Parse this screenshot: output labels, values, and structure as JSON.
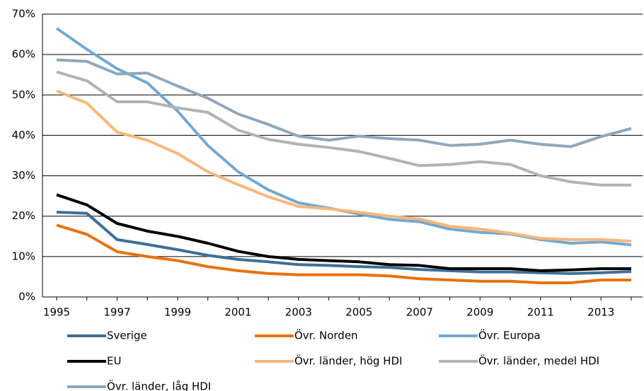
{
  "chart_data": {
    "type": "line",
    "categories": [
      "1995",
      null,
      "1997",
      null,
      "1999",
      null,
      "2001",
      null,
      "2003",
      null,
      "2005",
      null,
      "2007",
      null,
      "2009",
      null,
      "2011",
      null,
      "2013",
      null
    ],
    "ylim": [
      0,
      70
    ],
    "yticks": [
      {
        "value": 0,
        "label": "0%"
      },
      {
        "value": 10,
        "label": "10%"
      },
      {
        "value": 20,
        "label": "20%"
      },
      {
        "value": 30,
        "label": "30%"
      },
      {
        "value": 40,
        "label": "40%"
      },
      {
        "value": 50,
        "label": "50%"
      },
      {
        "value": 60,
        "label": "60%"
      },
      {
        "value": 70,
        "label": "70%"
      }
    ],
    "grid": true,
    "series": [
      {
        "name": "Sverige",
        "color": "#3f6f96",
        "values": [
          21,
          20.7,
          14.2,
          13,
          11.7,
          10.3,
          9.3,
          8.7,
          8,
          7.8,
          7.5,
          7.3,
          6.8,
          6.5,
          6.2,
          6.2,
          6,
          5.8,
          6,
          6.3
        ]
      },
      {
        "name": "Övr. Norden",
        "color": "#e8720c",
        "values": [
          17.8,
          15.5,
          11.2,
          10,
          9,
          7.5,
          6.5,
          5.8,
          5.5,
          5.5,
          5.5,
          5.2,
          4.5,
          4.2,
          3.9,
          3.9,
          3.5,
          3.5,
          4.2,
          4.2
        ]
      },
      {
        "name": "Övr. Europa",
        "color": "#74a9cf",
        "values": [
          66.5,
          61.3,
          56.5,
          53,
          46,
          37.5,
          31,
          26.5,
          23.3,
          22,
          20.5,
          19.2,
          18.6,
          16.8,
          16,
          15.6,
          14.2,
          13.3,
          13.6,
          12.9
        ]
      },
      {
        "name": "EU",
        "color": "#000000",
        "values": [
          25.3,
          22.8,
          18.2,
          16.3,
          15,
          13.3,
          11.3,
          10,
          9.3,
          9,
          8.7,
          8,
          7.8,
          7,
          7,
          7,
          6.5,
          6.7,
          7,
          7
        ]
      },
      {
        "name": "Övr. länder, hög HDI",
        "color": "#f9b77a",
        "values": [
          51,
          48,
          40.8,
          38.8,
          35.5,
          31,
          27.8,
          24.8,
          22.4,
          21.8,
          21,
          20,
          19.3,
          17.5,
          16.8,
          15.8,
          14.5,
          14.2,
          14.2,
          13.8
        ]
      },
      {
        "name": "Övr. länder, medel HDI",
        "color": "#b3b3b3",
        "values": [
          55.7,
          53.5,
          48.3,
          48.3,
          46.8,
          45.7,
          41.3,
          39,
          37.8,
          37,
          36,
          34.3,
          32.5,
          32.8,
          33.5,
          32.8,
          30,
          28.5,
          27.7,
          27.7
        ]
      },
      {
        "name": "Övr. länder, låg HDI",
        "color": "#8ea7be",
        "values": [
          58.7,
          58.3,
          55.2,
          55.4,
          52.2,
          49.2,
          45.3,
          42.7,
          39.8,
          38.8,
          39.8,
          39.2,
          38.8,
          37.5,
          37.8,
          38.8,
          37.8,
          37.2,
          39.7,
          41.7
        ]
      }
    ]
  }
}
